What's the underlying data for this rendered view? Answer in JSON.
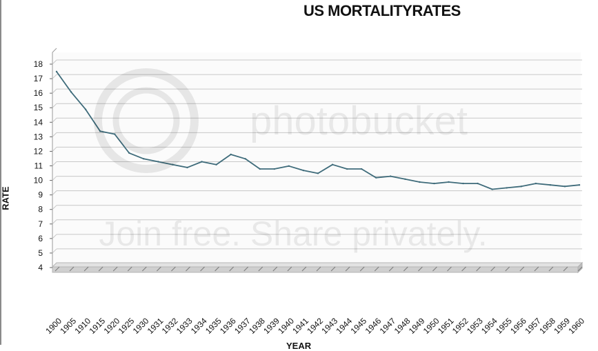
{
  "watermark": {
    "logo_text": "photobucket",
    "slogan": "Join free. Share privately."
  },
  "chart_data": {
    "type": "line",
    "title": "US MORTALITYRATES",
    "xlabel": "YEAR",
    "ylabel": "RATE",
    "ylim": [
      4,
      18
    ],
    "yticks": [
      4,
      5,
      6,
      7,
      8,
      9,
      10,
      11,
      12,
      13,
      14,
      15,
      16,
      17,
      18
    ],
    "grid": true,
    "categories": [
      "1900",
      "1905",
      "1910",
      "1915",
      "1920",
      "1925",
      "1930",
      "1931",
      "1932",
      "1933",
      "1934",
      "1935",
      "1936",
      "1937",
      "1938",
      "1939",
      "1940",
      "1941",
      "1942",
      "1943",
      "1944",
      "1945",
      "1946",
      "1947",
      "1948",
      "1949",
      "1950",
      "1951",
      "1952",
      "1953",
      "1954",
      "1955",
      "1956",
      "1957",
      "1958",
      "1959",
      "1960"
    ],
    "series": [
      {
        "color": "#3e6b7a",
        "values": [
          17.2,
          15.8,
          14.6,
          13.1,
          12.9,
          11.6,
          11.2,
          11.0,
          10.8,
          10.6,
          11.0,
          10.8,
          11.5,
          11.2,
          10.5,
          10.5,
          10.7,
          10.4,
          10.2,
          10.8,
          10.5,
          10.5,
          9.9,
          10.0,
          9.8,
          9.6,
          9.5,
          9.6,
          9.5,
          9.5,
          9.1,
          9.2,
          9.3,
          9.5,
          9.4,
          9.3,
          9.4
        ]
      }
    ]
  }
}
